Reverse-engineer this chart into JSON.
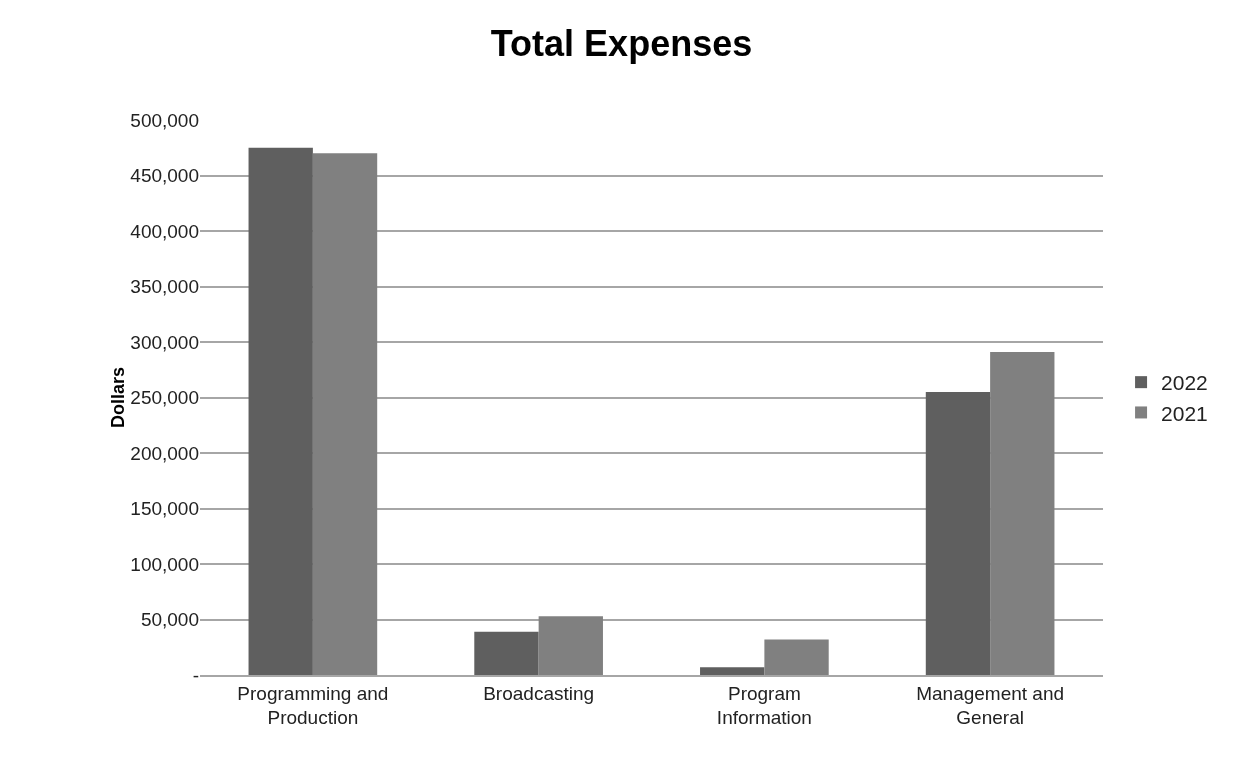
{
  "chart_data": {
    "type": "bar",
    "title": "Total Expenses",
    "ylabel": "Dollars",
    "categories": [
      "Programming and\nProduction",
      "Broadcasting",
      "Program\nInformation",
      "Management and\nGeneral"
    ],
    "series": [
      {
        "name": "2022",
        "color": "#5f5f5f",
        "values": [
          475000,
          39000,
          7000,
          255000
        ]
      },
      {
        "name": "2021",
        "color": "#808080",
        "values": [
          470000,
          53000,
          32000,
          291000
        ]
      }
    ],
    "ylim": [
      0,
      500000
    ],
    "yticks": [
      {
        "value": 0,
        "label": "-"
      },
      {
        "value": 50000,
        "label": "50,000"
      },
      {
        "value": 100000,
        "label": "100,000"
      },
      {
        "value": 150000,
        "label": "150,000"
      },
      {
        "value": 200000,
        "label": "200,000"
      },
      {
        "value": 250000,
        "label": "250,000"
      },
      {
        "value": 300000,
        "label": "300,000"
      },
      {
        "value": 350000,
        "label": "350,000"
      },
      {
        "value": 400000,
        "label": "400,000"
      },
      {
        "value": 450000,
        "label": "450,000"
      },
      {
        "value": 500000,
        "label": "500,000"
      }
    ],
    "grid": "y",
    "legend": "right"
  }
}
